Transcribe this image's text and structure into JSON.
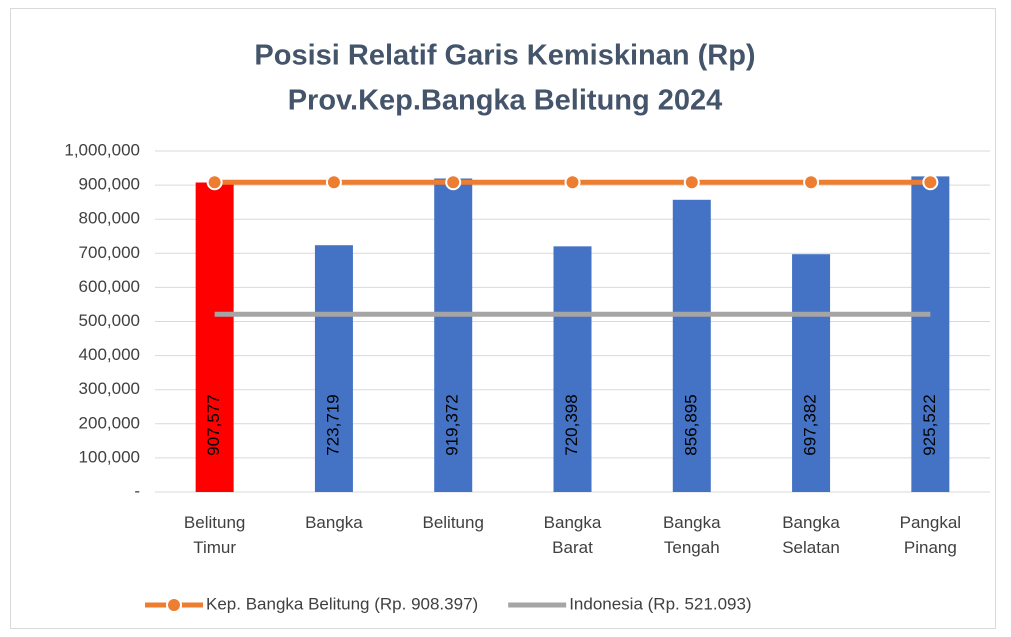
{
  "chart_data": {
    "type": "bar",
    "title": "Posisi Relatif Garis Kemiskinan (Rp)",
    "subtitle": "Prov.Kep.Bangka Belitung 2024",
    "categories": [
      "Belitung Timur",
      "Bangka",
      "Belitung",
      "Bangka Barat",
      "Bangka Tengah",
      "Bangka Selatan",
      "Pangkal Pinang"
    ],
    "series": [
      {
        "type": "bar",
        "colors": [
          "#ff0000",
          "#4472c4",
          "#4472c4",
          "#4472c4",
          "#4472c4",
          "#4472c4",
          "#4472c4"
        ],
        "values": [
          907577,
          723719,
          919372,
          720398,
          856895,
          697382,
          925522
        ],
        "value_labels": [
          "907,577",
          "723,719",
          "919,372",
          "720,398",
          "856,895",
          "697,382",
          "925,522"
        ]
      },
      {
        "type": "line",
        "name": "Kep. Bangka Belitung (Rp. 908.397)",
        "color": "#ed7d31",
        "markers": true,
        "values": [
          908397,
          908397,
          908397,
          908397,
          908397,
          908397,
          908397
        ]
      },
      {
        "type": "line",
        "name": "Indonesia (Rp. 521.093)",
        "color": "#a5a5a5",
        "markers": false,
        "values": [
          521093,
          521093,
          521093,
          521093,
          521093,
          521093,
          521093
        ]
      }
    ],
    "ylim": [
      0,
      1000000
    ],
    "yticks": [
      {
        "value": 0,
        "label": "-"
      },
      {
        "value": 100000,
        "label": "100,000"
      },
      {
        "value": 200000,
        "label": "200,000"
      },
      {
        "value": 300000,
        "label": "300,000"
      },
      {
        "value": 400000,
        "label": "400,000"
      },
      {
        "value": 500000,
        "label": "500,000"
      },
      {
        "value": 600000,
        "label": "600,000"
      },
      {
        "value": 700000,
        "label": "700,000"
      },
      {
        "value": 800000,
        "label": "800,000"
      },
      {
        "value": 900000,
        "label": "900,000"
      },
      {
        "value": 1000000,
        "label": "1,000,000"
      }
    ],
    "grid": true,
    "legend": "bottom"
  }
}
